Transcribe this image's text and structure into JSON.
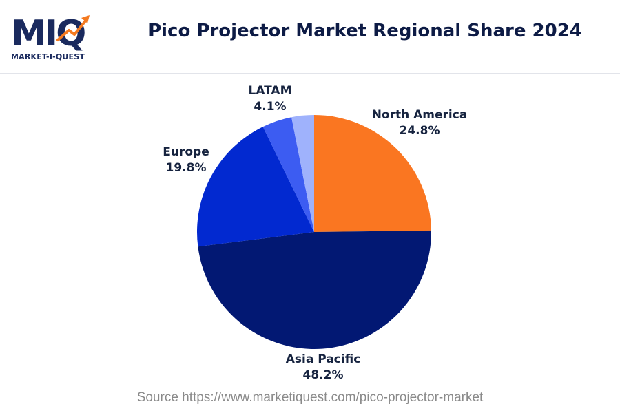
{
  "logo": {
    "letters": "MIQ",
    "caption": "MARKET-I-QUEST",
    "colors": {
      "navy": "#1a2a5e",
      "orange": "#f47a20"
    }
  },
  "header": {
    "title": "Pico Projector Market Regional Share 2024"
  },
  "chart_data": {
    "type": "pie",
    "title": "Pico Projector Market Regional Share 2024",
    "slices": [
      {
        "name": "North America",
        "value": 24.8,
        "label": "24.8%",
        "color": "#fa7621"
      },
      {
        "name": "Asia Pacific",
        "value": 48.2,
        "label": "48.2%",
        "color": "#021873"
      },
      {
        "name": "Europe",
        "value": 19.8,
        "label": "19.8%",
        "color": "#0229d0"
      },
      {
        "name": "LATAM",
        "value": 4.1,
        "label": "4.1%",
        "color": "#3c5cf2"
      },
      {
        "name": "",
        "value": 3.1,
        "label": "",
        "color": "#9fb2fc"
      }
    ],
    "start": "12 o'clock",
    "direction": "clockwise",
    "legend": "none"
  },
  "footer": {
    "source": "Source https://www.marketiquest.com/pico-projector-market"
  }
}
